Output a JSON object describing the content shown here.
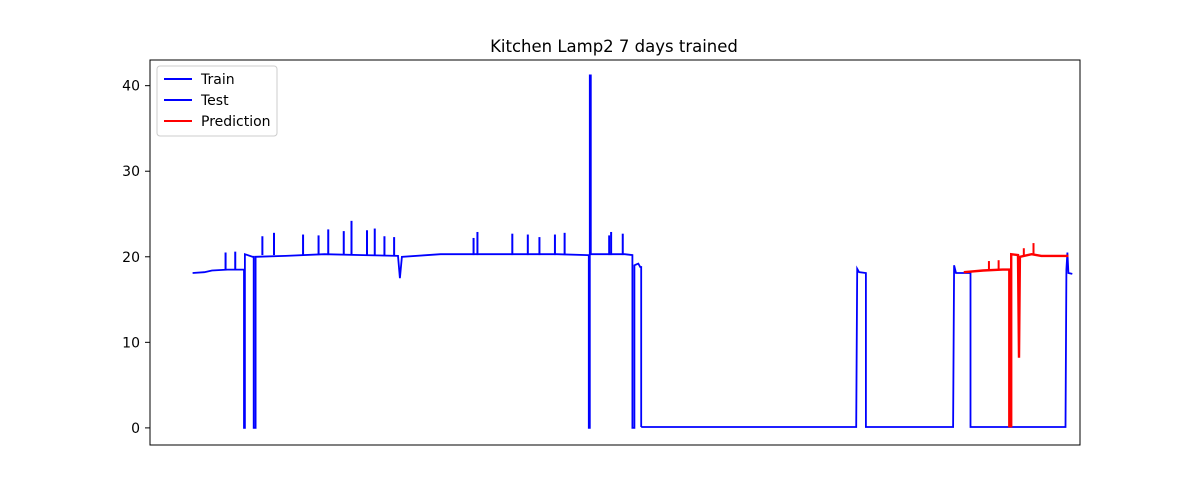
{
  "chart_data": {
    "type": "line",
    "title": "Kitchen Lamp2 7 days trained",
    "xlabel": "",
    "ylabel": "",
    "x_ticks_visible": false,
    "xlim": [
      -10,
      470
    ],
    "ylim": [
      -2,
      43
    ],
    "y_ticks": [
      0,
      10,
      20,
      30,
      40
    ],
    "grid": false,
    "legend_position": "top-left",
    "legend": [
      "Train",
      "Test",
      "Prediction"
    ],
    "series": [
      {
        "name": "Train",
        "color": "#0000ff",
        "points": [
          [
            12,
            18.1
          ],
          [
            18,
            18.2
          ],
          [
            22,
            18.4
          ],
          [
            30,
            18.5
          ],
          [
            37,
            18.5
          ],
          [
            38.5,
            18.5
          ],
          [
            38.5,
            0
          ],
          [
            39,
            0
          ],
          [
            39,
            20.3
          ],
          [
            43,
            20.0
          ],
          [
            43.5,
            20.0
          ],
          [
            43.5,
            0
          ],
          [
            44.5,
            0
          ],
          [
            44.5,
            20.0
          ],
          [
            60,
            20.1
          ],
          [
            80,
            20.3
          ],
          [
            100,
            20.2
          ],
          [
            118,
            20.1
          ],
          [
            119,
            17.5
          ],
          [
            120,
            20.0
          ],
          [
            140,
            20.3
          ],
          [
            180,
            20.3
          ],
          [
            200,
            20.3
          ],
          [
            216,
            20.2
          ],
          [
            216.5,
            20.2
          ],
          [
            216.5,
            0
          ],
          [
            217,
            0
          ],
          [
            217,
            41.2
          ],
          [
            217.5,
            41.2
          ],
          [
            217.5,
            20.3
          ],
          [
            235,
            20.3
          ],
          [
            239,
            20.2
          ],
          [
            239,
            0
          ],
          [
            240,
            0
          ],
          [
            240,
            19.0
          ],
          [
            242,
            19.2
          ],
          [
            243,
            18.8
          ],
          [
            243.5,
            18.8
          ],
          [
            243.5,
            0.1
          ]
        ]
      },
      {
        "name": "Test",
        "color": "#0000ff",
        "points": [
          [
            243.5,
            0.1
          ],
          [
            300,
            0.1
          ],
          [
            350,
            0.1
          ],
          [
            354.5,
            0.1
          ],
          [
            355,
            18.6
          ],
          [
            356,
            18.2
          ],
          [
            359.5,
            18.1
          ],
          [
            359.5,
            0.1
          ],
          [
            400,
            0.1
          ],
          [
            404.5,
            0.1
          ],
          [
            405,
            19.0
          ],
          [
            406,
            18.1
          ],
          [
            413.5,
            18.1
          ],
          [
            413.5,
            0.1
          ],
          [
            414.5,
            0.1
          ],
          [
            440,
            0.1
          ],
          [
            462.5,
            0.1
          ],
          [
            463,
            18.5
          ],
          [
            463.5,
            20.5
          ],
          [
            464,
            18.1
          ],
          [
            466,
            18.0
          ]
        ]
      },
      {
        "name": "Prediction",
        "color": "#ff0000",
        "points": [
          [
            410,
            18.2
          ],
          [
            420,
            18.4
          ],
          [
            430,
            18.5
          ],
          [
            433.5,
            18.5
          ],
          [
            433.5,
            0.2
          ],
          [
            434.5,
            0.2
          ],
          [
            434.5,
            20.3
          ],
          [
            438,
            20.2
          ],
          [
            438.5,
            8.2
          ],
          [
            439,
            20.0
          ],
          [
            445,
            20.3
          ],
          [
            450,
            20.1
          ],
          [
            455,
            20.1
          ],
          [
            461,
            20.1
          ],
          [
            464,
            20.1
          ]
        ]
      }
    ],
    "spikes": [
      {
        "series": "Train",
        "x": 29,
        "y": 20.5
      },
      {
        "series": "Train",
        "x": 34,
        "y": 20.6
      },
      {
        "series": "Train",
        "x": 48,
        "y": 22.4
      },
      {
        "series": "Train",
        "x": 54,
        "y": 22.8
      },
      {
        "series": "Train",
        "x": 69,
        "y": 22.6
      },
      {
        "series": "Train",
        "x": 77,
        "y": 22.5
      },
      {
        "series": "Train",
        "x": 82,
        "y": 23.2
      },
      {
        "series": "Train",
        "x": 90,
        "y": 23.0
      },
      {
        "series": "Train",
        "x": 94,
        "y": 24.2
      },
      {
        "series": "Train",
        "x": 102,
        "y": 23.1
      },
      {
        "series": "Train",
        "x": 106,
        "y": 23.3
      },
      {
        "series": "Train",
        "x": 111,
        "y": 22.4
      },
      {
        "series": "Train",
        "x": 116,
        "y": 22.3
      },
      {
        "series": "Train",
        "x": 157,
        "y": 22.2
      },
      {
        "series": "Train",
        "x": 159,
        "y": 22.9
      },
      {
        "series": "Train",
        "x": 177,
        "y": 22.7
      },
      {
        "series": "Train",
        "x": 185,
        "y": 22.6
      },
      {
        "series": "Train",
        "x": 191,
        "y": 22.3
      },
      {
        "series": "Train",
        "x": 199,
        "y": 22.6
      },
      {
        "series": "Train",
        "x": 204,
        "y": 22.8
      },
      {
        "series": "Train",
        "x": 227,
        "y": 22.5
      },
      {
        "series": "Train",
        "x": 228,
        "y": 22.9
      },
      {
        "series": "Train",
        "x": 234,
        "y": 22.7
      },
      {
        "series": "Prediction",
        "x": 423,
        "y": 19.5
      },
      {
        "series": "Prediction",
        "x": 428,
        "y": 19.6
      },
      {
        "series": "Prediction",
        "x": 441,
        "y": 21.0
      },
      {
        "series": "Prediction",
        "x": 446,
        "y": 21.6
      }
    ]
  }
}
